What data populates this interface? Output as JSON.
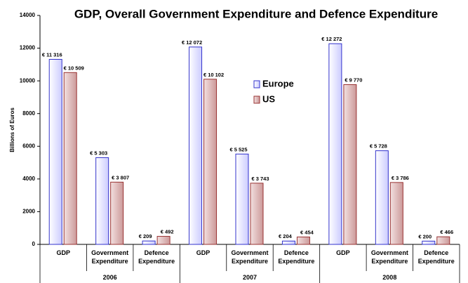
{
  "chart_data": {
    "type": "bar",
    "title": "GDP, Overall Government Expenditure and Defence Expenditure",
    "y_label": "Billions of Euros",
    "categories": [
      "GDP",
      "Government Expenditure",
      "Defence Expenditure",
      "GDP",
      "Government Expenditure",
      "Defence Expenditure",
      "GDP",
      "Government Expenditure",
      "Defence Expenditure"
    ],
    "groups": [
      "2006",
      "2007",
      "2008"
    ],
    "series": [
      {
        "name": "Europe",
        "color": "#ccccff",
        "values": [
          11316,
          5303,
          209,
          12072,
          5525,
          204,
          12272,
          5728,
          200
        ],
        "value_labels": [
          "€ 11 316",
          "€ 5 303",
          "€ 209",
          "€ 12 072",
          "€ 5 525",
          "€ 204",
          "€ 12 272",
          "€ 5 728",
          "€ 200"
        ]
      },
      {
        "name": "US",
        "color": "#cc9999",
        "values": [
          10509,
          3807,
          492,
          10102,
          3743,
          454,
          9770,
          3786,
          466
        ],
        "value_labels": [
          "€ 10 509",
          "€ 3 807",
          "€ 492",
          "€ 10 102",
          "€ 3 743",
          "€ 454",
          "€ 9 770",
          "€ 3 786",
          "€ 466"
        ]
      }
    ],
    "ylim": [
      0,
      14000
    ],
    "yticks": [
      0,
      2000,
      4000,
      6000,
      8000,
      10000,
      12000,
      14000
    ],
    "grid": false
  }
}
